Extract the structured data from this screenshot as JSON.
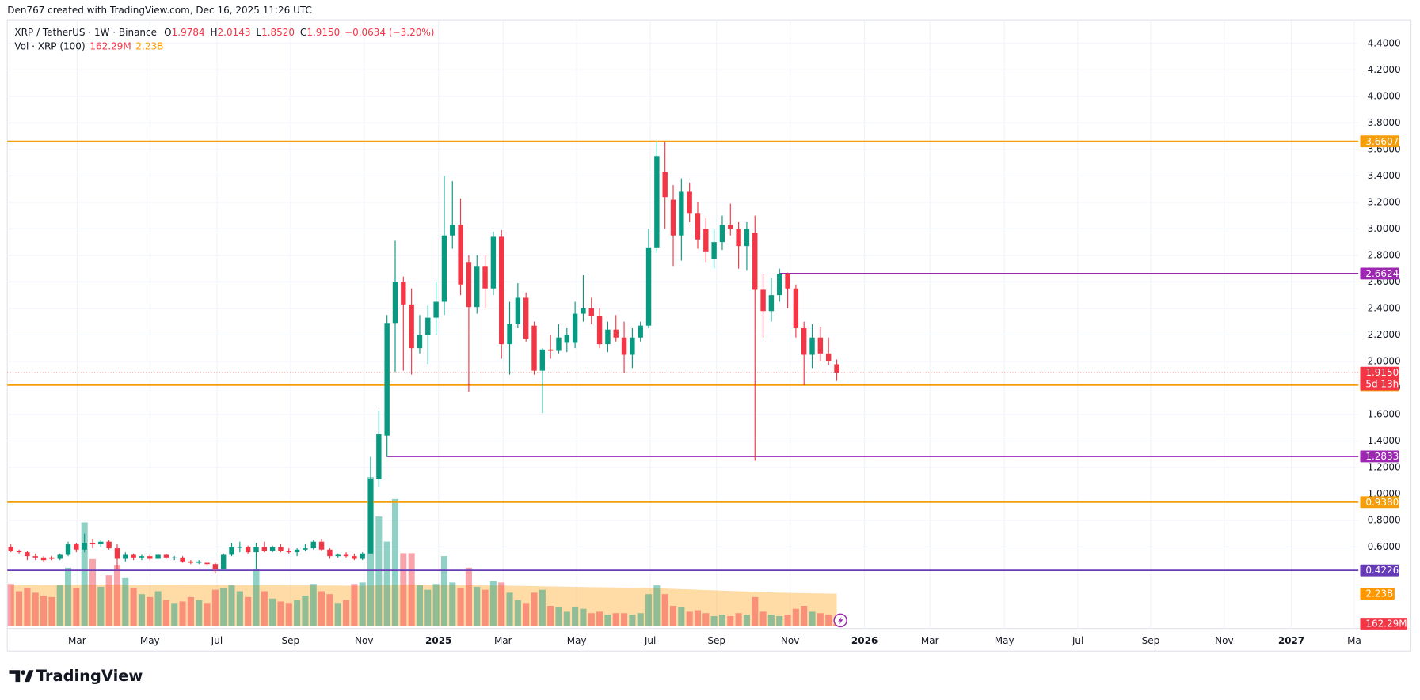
{
  "header": {
    "attribution": "Den767 created with TradingView.com, Dec 16, 2025 11:26 UTC"
  },
  "footer": {
    "brand": "TradingView"
  },
  "chart_data": {
    "type": "candlestick",
    "symbol": "XRP / TetherUS · 1W · Binance",
    "ohlc_legend": [
      {
        "key": "O",
        "value": "1.9784"
      },
      {
        "key": "H",
        "value": "2.0143"
      },
      {
        "key": "L",
        "value": "1.8520"
      },
      {
        "key": "C",
        "value": "1.9150"
      }
    ],
    "change": "−0.0634 (−3.20%)",
    "volume_legend": {
      "name": "Vol · XRP (100)",
      "volume": "162.29M",
      "ma": "2.23B"
    },
    "up_color": "#089981",
    "down_color": "#f23645",
    "open": [
      0.6,
      0.57,
      0.56,
      0.53,
      0.52,
      0.52,
      0.51,
      0.54,
      0.62,
      0.58,
      0.63,
      0.62,
      0.64,
      0.59,
      0.51,
      0.54,
      0.52,
      0.53,
      0.51,
      0.54,
      0.52,
      0.52,
      0.49,
      0.48,
      0.48,
      0.47,
      0.43,
      0.54,
      0.6,
      0.6,
      0.56,
      0.6,
      0.57,
      0.6,
      0.57,
      0.56,
      0.58,
      0.59,
      0.64,
      0.58,
      0.53,
      0.54,
      0.53,
      0.51,
      0.55,
      1.11,
      1.44,
      2.29,
      2.6,
      2.43,
      2.1,
      2.2,
      2.33,
      2.45,
      2.95,
      3.03,
      2.75,
      2.41,
      2.72,
      2.55,
      2.94,
      2.13,
      2.28,
      2.48,
      2.27,
      1.93,
      2.09,
      2.08,
      2.14,
      2.14,
      2.36,
      2.4,
      2.34,
      2.13,
      2.24,
      2.18,
      2.05,
      2.18,
      2.27,
      2.86,
      3.43,
      3.22,
      2.95,
      3.28,
      3.12,
      3.0,
      2.77,
      2.9,
      3.03,
      3.0,
      2.87,
      2.97,
      2.54,
      2.38,
      2.5,
      2.66,
      2.55,
      2.25,
      2.05,
      2.18,
      2.06,
      1.9784
    ],
    "high": [
      0.62,
      0.58,
      0.57,
      0.55,
      0.53,
      0.53,
      0.55,
      0.64,
      0.63,
      0.7,
      0.66,
      0.65,
      0.65,
      0.62,
      0.56,
      0.55,
      0.54,
      0.54,
      0.55,
      0.55,
      0.53,
      0.53,
      0.5,
      0.5,
      0.49,
      0.48,
      0.55,
      0.63,
      0.64,
      0.61,
      0.63,
      0.64,
      0.61,
      0.62,
      0.59,
      0.59,
      0.62,
      0.65,
      0.66,
      0.59,
      0.55,
      0.56,
      0.55,
      0.56,
      1.28,
      1.63,
      2.35,
      2.91,
      2.64,
      2.55,
      2.35,
      2.42,
      2.6,
      3.4,
      3.36,
      3.23,
      2.8,
      2.8,
      2.8,
      2.98,
      2.99,
      2.45,
      2.59,
      2.52,
      2.3,
      2.1,
      2.2,
      2.28,
      2.25,
      2.45,
      2.65,
      2.48,
      2.4,
      2.3,
      2.35,
      2.3,
      2.25,
      2.3,
      3.0,
      3.66,
      3.66,
      3.33,
      3.38,
      3.35,
      3.2,
      3.08,
      3.0,
      3.1,
      3.19,
      3.05,
      3.05,
      3.1,
      2.66,
      2.63,
      2.7,
      2.67,
      2.58,
      2.3,
      2.28,
      2.26,
      2.18,
      2.0143
    ],
    "low": [
      0.56,
      0.55,
      0.5,
      0.5,
      0.49,
      0.5,
      0.5,
      0.53,
      0.56,
      0.56,
      0.59,
      0.6,
      0.58,
      0.42,
      0.49,
      0.5,
      0.5,
      0.5,
      0.51,
      0.51,
      0.5,
      0.48,
      0.47,
      0.47,
      0.46,
      0.4,
      0.42,
      0.53,
      0.56,
      0.55,
      0.43,
      0.56,
      0.56,
      0.56,
      0.55,
      0.53,
      0.57,
      0.58,
      0.57,
      0.51,
      0.52,
      0.52,
      0.5,
      0.5,
      0.55,
      1.05,
      1.28,
      1.92,
      1.93,
      1.9,
      2.06,
      1.98,
      2.2,
      2.35,
      2.85,
      2.5,
      1.77,
      2.36,
      2.4,
      2.5,
      2.02,
      1.9,
      2.25,
      2.15,
      1.9,
      1.61,
      2.02,
      2.06,
      2.07,
      2.1,
      2.3,
      2.28,
      2.1,
      2.07,
      2.15,
      1.91,
      1.95,
      2.15,
      2.25,
      2.82,
      3.0,
      2.72,
      2.76,
      3.05,
      2.85,
      2.75,
      2.7,
      2.84,
      2.95,
      2.7,
      2.69,
      1.25,
      2.18,
      2.3,
      2.45,
      2.4,
      2.18,
      1.82,
      1.95,
      2.0,
      1.97,
      1.852
    ],
    "close": [
      0.57,
      0.56,
      0.53,
      0.52,
      0.5,
      0.51,
      0.54,
      0.62,
      0.58,
      0.63,
      0.62,
      0.64,
      0.59,
      0.51,
      0.54,
      0.52,
      0.53,
      0.51,
      0.54,
      0.52,
      0.52,
      0.49,
      0.48,
      0.49,
      0.47,
      0.43,
      0.54,
      0.6,
      0.6,
      0.56,
      0.6,
      0.57,
      0.6,
      0.57,
      0.56,
      0.58,
      0.59,
      0.64,
      0.58,
      0.53,
      0.54,
      0.53,
      0.51,
      0.55,
      1.11,
      1.45,
      2.29,
      2.6,
      2.43,
      2.1,
      2.2,
      2.33,
      2.45,
      2.95,
      3.03,
      2.58,
      2.41,
      2.72,
      2.55,
      2.94,
      2.13,
      2.28,
      2.48,
      2.17,
      1.93,
      2.09,
      2.08,
      2.18,
      2.2,
      2.36,
      2.4,
      2.34,
      2.13,
      2.24,
      2.18,
      2.05,
      2.18,
      2.27,
      2.86,
      3.55,
      3.24,
      2.95,
      3.28,
      3.12,
      2.92,
      2.83,
      2.9,
      3.03,
      3.0,
      2.87,
      3.0,
      2.54,
      2.38,
      2.5,
      2.66,
      2.55,
      2.25,
      2.05,
      2.18,
      2.06,
      2.0,
      1.915
    ],
    "volume": [
      2.9,
      2.4,
      2.6,
      2.3,
      2.1,
      2.0,
      2.8,
      4.0,
      2.6,
      7.1,
      4.6,
      2.7,
      3.5,
      4.2,
      3.3,
      2.6,
      2.2,
      2.0,
      2.4,
      1.8,
      1.6,
      1.7,
      2.0,
      1.8,
      1.6,
      2.5,
      2.6,
      2.8,
      2.4,
      2.0,
      3.9,
      2.4,
      1.9,
      1.7,
      1.6,
      1.8,
      2.1,
      2.9,
      2.4,
      2.2,
      1.6,
      1.8,
      2.9,
      3.0,
      10.2,
      7.5,
      5.8,
      8.7,
      5.0,
      5.0,
      2.8,
      2.5,
      2.9,
      4.8,
      3.0,
      2.6,
      4.0,
      2.7,
      2.5,
      3.1,
      3.0,
      2.3,
      1.8,
      1.6,
      2.3,
      2.5,
      1.4,
      1.3,
      1.0,
      1.3,
      1.2,
      0.9,
      1.0,
      0.8,
      0.9,
      0.9,
      0.8,
      0.9,
      2.2,
      2.8,
      2.2,
      1.4,
      1.3,
      1.0,
      1.1,
      0.9,
      0.7,
      0.8,
      0.7,
      0.9,
      0.8,
      2.0,
      1.0,
      0.8,
      0.7,
      0.8,
      1.2,
      1.4,
      1.0,
      0.9,
      0.8,
      0.16229
    ],
    "volume_ma": [
      2.8,
      2.8,
      2.81,
      2.81,
      2.82,
      2.82,
      2.83,
      2.83,
      2.84,
      2.85,
      2.85,
      2.85,
      2.86,
      2.86,
      2.86,
      2.86,
      2.86,
      2.86,
      2.85,
      2.85,
      2.85,
      2.84,
      2.84,
      2.84,
      2.83,
      2.83,
      2.83,
      2.82,
      2.82,
      2.82,
      2.82,
      2.81,
      2.81,
      2.81,
      2.8,
      2.8,
      2.8,
      2.8,
      2.79,
      2.79,
      2.79,
      2.78,
      2.78,
      2.78,
      2.8,
      2.82,
      2.83,
      2.84,
      2.84,
      2.85,
      2.85,
      2.84,
      2.84,
      2.83,
      2.83,
      2.82,
      2.82,
      2.81,
      2.8,
      2.8,
      2.79,
      2.78,
      2.77,
      2.76,
      2.75,
      2.74,
      2.73,
      2.72,
      2.71,
      2.7,
      2.69,
      2.68,
      2.67,
      2.66,
      2.65,
      2.64,
      2.63,
      2.62,
      2.61,
      2.6,
      2.58,
      2.56,
      2.54,
      2.52,
      2.5,
      2.48,
      2.46,
      2.44,
      2.42,
      2.4,
      2.38,
      2.36,
      2.34,
      2.32,
      2.3,
      2.29,
      2.28,
      2.27,
      2.26,
      2.25,
      2.24,
      2.23
    ],
    "volume_ma_color": "#ff9800",
    "vlim": [
      0,
      10.5
    ],
    "ylim": [
      0,
      4.58
    ],
    "yticks": [
      {
        "value": 0.6,
        "label": "0.6000"
      },
      {
        "value": 0.8,
        "label": "0.8000"
      },
      {
        "value": 1.0,
        "label": "1.0000"
      },
      {
        "value": 1.2,
        "label": "1.2000"
      },
      {
        "value": 1.4,
        "label": "1.4000"
      },
      {
        "value": 1.6,
        "label": "1.6000"
      },
      {
        "value": 1.8,
        "label": "1.8000"
      },
      {
        "value": 2.0,
        "label": "2.0000"
      },
      {
        "value": 2.2,
        "label": "2.2000"
      },
      {
        "value": 2.4,
        "label": "2.4000"
      },
      {
        "value": 2.6,
        "label": "2.6000"
      },
      {
        "value": 2.8,
        "label": "2.8000"
      },
      {
        "value": 3.0,
        "label": "3.0000"
      },
      {
        "value": 3.2,
        "label": "3.2000"
      },
      {
        "value": 3.4,
        "label": "3.4000"
      },
      {
        "value": 3.6,
        "label": "3.6000"
      },
      {
        "value": 3.8,
        "label": "3.8000"
      },
      {
        "value": 4.0,
        "label": "4.0000"
      },
      {
        "value": 4.2,
        "label": "4.2000"
      },
      {
        "value": 4.4,
        "label": "4.4000"
      }
    ],
    "xlim": [
      -0.44,
      164.8
    ],
    "xticks": [
      {
        "value": 8.1,
        "label": "Mar"
      },
      {
        "value": 17.0,
        "label": "May"
      },
      {
        "value": 25.2,
        "label": "Jul"
      },
      {
        "value": 34.2,
        "label": "Sep"
      },
      {
        "value": 43.2,
        "label": "Nov"
      },
      {
        "value": 52.3,
        "label": "2025"
      },
      {
        "value": 60.2,
        "label": "Mar"
      },
      {
        "value": 69.2,
        "label": "May"
      },
      {
        "value": 78.2,
        "label": "Jul"
      },
      {
        "value": 86.3,
        "label": "Sep"
      },
      {
        "value": 95.3,
        "label": "Nov"
      },
      {
        "value": 104.4,
        "label": "2026"
      },
      {
        "value": 112.4,
        "label": "Mar"
      },
      {
        "value": 121.5,
        "label": "May"
      },
      {
        "value": 130.5,
        "label": "Jul"
      },
      {
        "value": 139.4,
        "label": "Sep"
      },
      {
        "value": 148.4,
        "label": "Nov"
      },
      {
        "value": 156.6,
        "label": "2027"
      },
      {
        "value": 164.3,
        "label": "Ma"
      }
    ],
    "levels": [
      {
        "value": 3.6607,
        "color": "#f59d0a"
      },
      {
        "value": 2.6624,
        "color": "#9c27b0",
        "from": 94
      },
      {
        "value": 1.8209,
        "color": "#f59d0a"
      },
      {
        "value": 1.2833,
        "color": "#9c27b0",
        "from": 46
      },
      {
        "value": 0.938,
        "label": "0.9380",
        "color": "#f59d0a"
      },
      {
        "value": 0.4226,
        "color": "#673ab7"
      }
    ],
    "last_price": {
      "value": 1.915,
      "label": "1.9150",
      "countdown": "5d 13h"
    },
    "grid": true
  }
}
